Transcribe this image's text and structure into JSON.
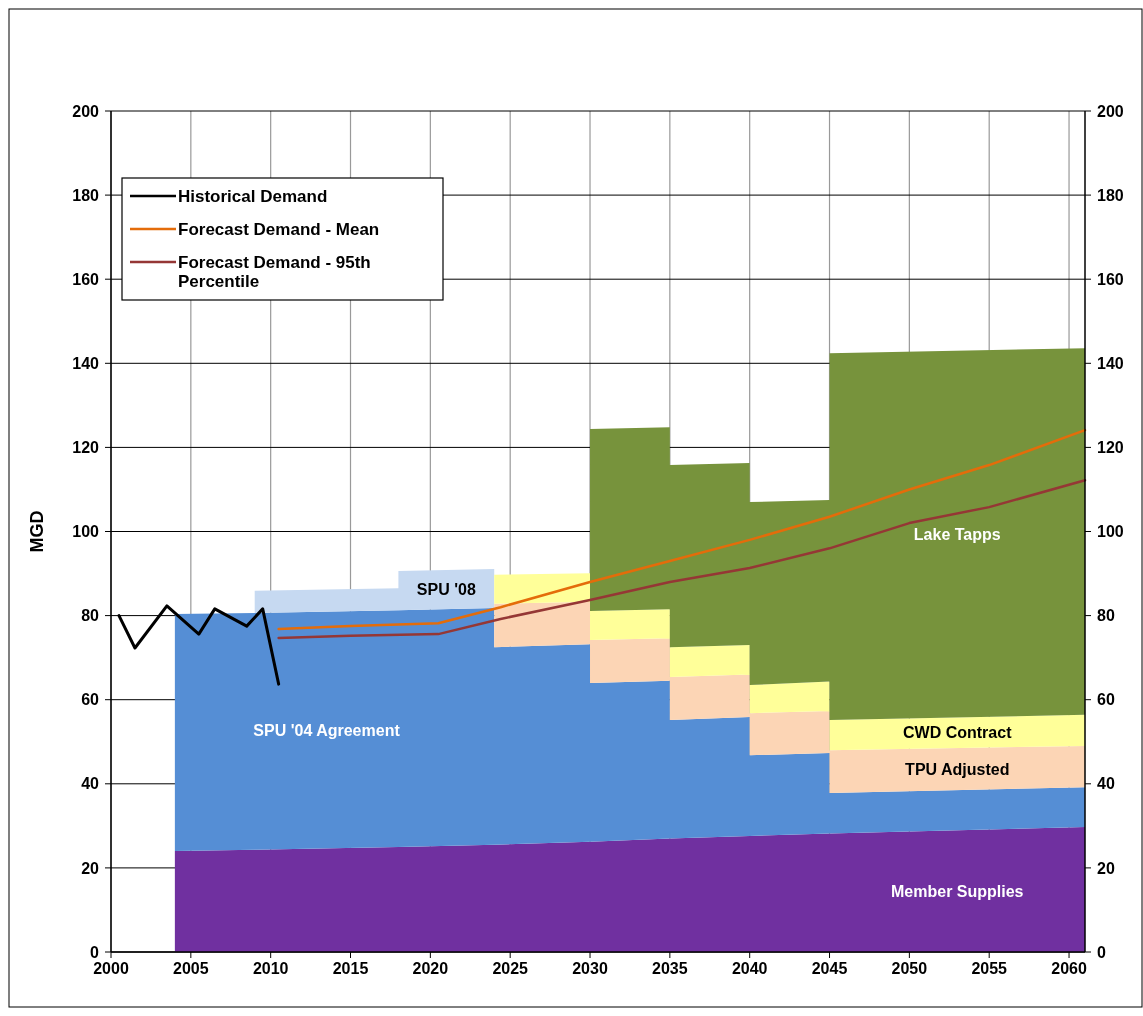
{
  "chart_data": {
    "type": "area",
    "stacked": true,
    "ylabel": "MGD",
    "xlim": [
      2000,
      2061
    ],
    "xticks": [
      2000,
      2005,
      2010,
      2015,
      2020,
      2025,
      2030,
      2035,
      2040,
      2045,
      2050,
      2055,
      2060
    ],
    "ylim": [
      0,
      200
    ],
    "yticks": [
      0,
      20,
      40,
      60,
      80,
      100,
      120,
      140,
      160,
      180,
      200
    ],
    "y2lim": [
      0,
      200
    ],
    "y2ticks": [
      0,
      20,
      40,
      60,
      80,
      100,
      120,
      140,
      160,
      180,
      200
    ],
    "grid": true,
    "legend": "top left",
    "x": [
      2004,
      2009,
      2009,
      2018,
      2018,
      2024,
      2024,
      2030,
      2030,
      2035,
      2035,
      2040,
      2040,
      2045,
      2045,
      2061
    ],
    "series": [
      {
        "name": "Member Supplies",
        "color": "#7030a0",
        "values": [
          24,
          24.3,
          24.3,
          25,
          25,
          25.5,
          25.5,
          26.2,
          26.2,
          27,
          27,
          27.6,
          27.6,
          28.2,
          28.2,
          29.7
        ]
      },
      {
        "name": "SPU '04 Agreement",
        "color": "#558ed5",
        "values": [
          56.4,
          56.3,
          56.3,
          56.3,
          56.3,
          56.3,
          47,
          47,
          37.8,
          37.5,
          28.2,
          28.3,
          19.2,
          19.1,
          9.6,
          9.5
        ]
      },
      {
        "name": "SPU '08",
        "color": "#c6d9f1",
        "values": [
          null,
          null,
          5.3,
          5.2,
          9.3,
          9.3,
          null,
          null,
          null,
          null,
          null,
          null,
          null,
          null,
          null,
          null
        ]
      },
      {
        "name": "TPU Adjusted",
        "color": "#fcd5b5",
        "values": [
          null,
          null,
          null,
          null,
          null,
          null,
          10.3,
          10.1,
          10.2,
          10.1,
          10.2,
          10.1,
          10,
          10,
          10.2,
          9.8
        ]
      },
      {
        "name": "CWD Contract",
        "color": "#ffff99",
        "values": [
          null,
          null,
          null,
          null,
          null,
          null,
          6.9,
          6.8,
          6.9,
          6.9,
          7.1,
          7,
          6.7,
          7,
          7.2,
          7.4
        ]
      },
      {
        "name": "Lake Tapps",
        "color": "#77933c",
        "values": [
          null,
          null,
          null,
          null,
          null,
          null,
          null,
          null,
          43.3,
          43.3,
          43.3,
          43.3,
          43.5,
          43.2,
          87.2,
          87.2
        ]
      },
      {
        "name": "Historical Demand",
        "type": "line",
        "color": "#000000",
        "x": [
          2000.5,
          2001.5,
          2003.5,
          2005.5,
          2006.5,
          2008.5,
          2009.5,
          2010.5
        ],
        "values": [
          80,
          72.3,
          82.3,
          75.6,
          81.6,
          77.5,
          81.6,
          63.7
        ]
      },
      {
        "name": "Forecast Demand - Mean",
        "type": "line",
        "color": "#e46c0a",
        "x": [
          2010.5,
          2015,
          2020.5,
          2024.4,
          2030,
          2035,
          2040,
          2045,
          2050,
          2055,
          2061
        ],
        "values": [
          76.8,
          77.5,
          78.2,
          82,
          88,
          93,
          98,
          103.5,
          110,
          115.8,
          124.1
        ]
      },
      {
        "name": "Forecast Demand - 95th Percentile",
        "type": "line",
        "color": "#953735",
        "x": [
          2010.5,
          2015,
          2020.5,
          2024.4,
          2030,
          2035,
          2040,
          2045,
          2050,
          2055,
          2061
        ],
        "values": [
          74.7,
          75.2,
          75.6,
          79.2,
          83.7,
          88,
          91.3,
          96,
          102,
          105.8,
          112.2
        ]
      }
    ]
  }
}
